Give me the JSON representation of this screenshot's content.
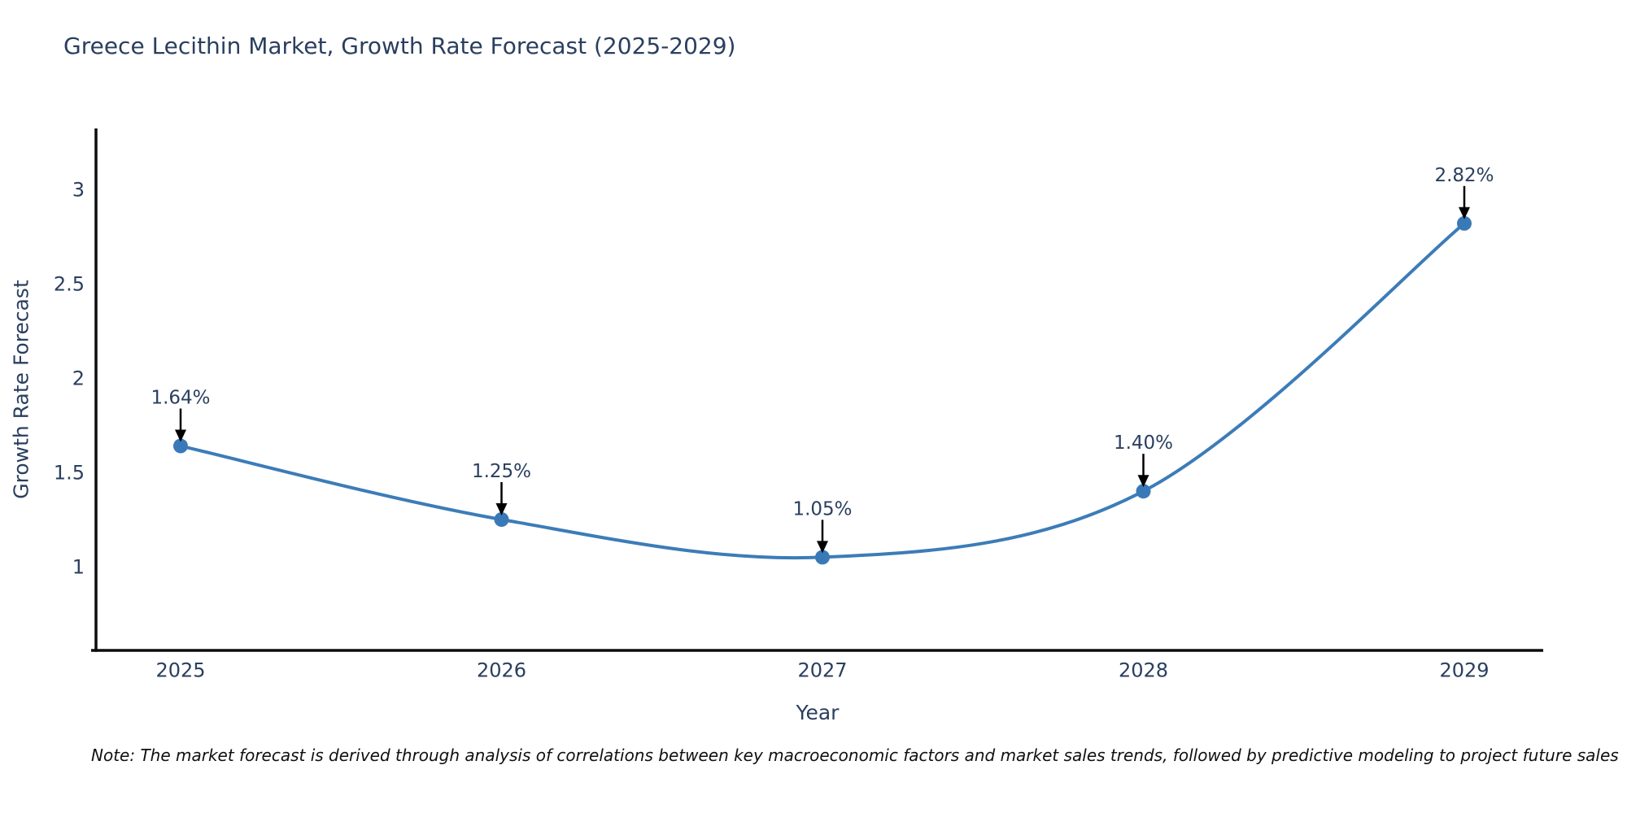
{
  "title": "Greece Lecithin Market, Growth Rate Forecast (2025-2029)",
  "note": "Note: The market forecast is derived through analysis of correlations between key macroeconomic factors and market sales trends, followed by predictive modeling to project future sales",
  "colors": {
    "line": "#3c7cb8",
    "marker": "#3a79b8",
    "axis": "#0c0d0e",
    "text": "#2a3f5f",
    "arrow": "#000000",
    "background": "#ffffff"
  },
  "chart_data": {
    "type": "line",
    "line_shape": "spline",
    "grid": false,
    "legend": "none",
    "title": "Greece Lecithin Market, Growth Rate Forecast (2025-2029)",
    "xlabel": "Year",
    "ylabel": "Growth Rate Forecast",
    "x": [
      2025,
      2026,
      2027,
      2028,
      2029
    ],
    "x_tick_labels": [
      "2025",
      "2026",
      "2027",
      "2028",
      "2029"
    ],
    "series": [
      {
        "name": "Growth Rate Forecast",
        "values": [
          1.64,
          1.25,
          1.05,
          1.4,
          2.82
        ]
      }
    ],
    "point_labels": [
      "1.64%",
      "1.25%",
      "1.05%",
      "1.40%",
      "2.82%"
    ],
    "y_ticks": [
      1,
      1.5,
      2,
      2.5,
      3
    ],
    "y_tick_labels": [
      "1",
      "1.5",
      "2",
      "2.5",
      "3"
    ],
    "ylim": [
      0.556,
      3.32
    ],
    "annotations": "labels above points with downward black arrows"
  }
}
